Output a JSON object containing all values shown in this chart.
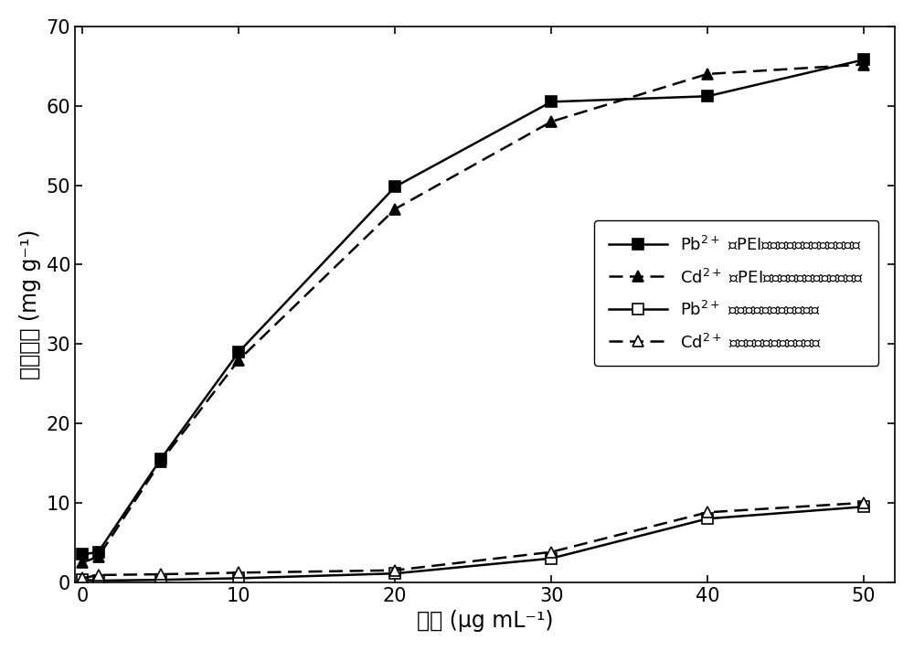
{
  "x": [
    0,
    1,
    5,
    10,
    20,
    30,
    40,
    50
  ],
  "pb_pei": [
    3.5,
    3.8,
    15.5,
    29.0,
    49.8,
    60.5,
    61.2,
    65.8
  ],
  "cd_pei": [
    2.5,
    3.2,
    15.2,
    28.0,
    47.0,
    58.0,
    64.0,
    65.2
  ],
  "pb_gel": [
    0.3,
    0.2,
    0.3,
    0.5,
    1.1,
    3.0,
    8.0,
    9.5
  ],
  "cd_gel": [
    0.5,
    0.9,
    1.0,
    1.2,
    1.5,
    3.8,
    8.8,
    10.0
  ],
  "xlabel": "浓度 (μg mL⁻¹)",
  "ylabel": "吸附容量 (mg g⁻¹)",
  "xlim": [
    -0.5,
    52
  ],
  "ylim": [
    0,
    70
  ],
  "yticks": [
    0,
    10,
    20,
    30,
    40,
    50,
    60,
    70
  ],
  "xticks": [
    0,
    10,
    20,
    30,
    40,
    50
  ],
  "legend1": "Pb$^{2+}$ 在PEI接枝明胶海绵上的吸附容量",
  "legend2": "Cd$^{2+}$ 在PEI接枝明胶海绵上的吸附容量",
  "legend3": "Pb$^{2+}$ 在明胶海绵上的吸附容量",
  "legend4": "Cd$^{2+}$ 在明胶海绵上的吸附容量",
  "color": "#000000",
  "bg_color": "#ffffff",
  "fontsize_label": 17,
  "fontsize_tick": 15,
  "fontsize_legend": 13
}
